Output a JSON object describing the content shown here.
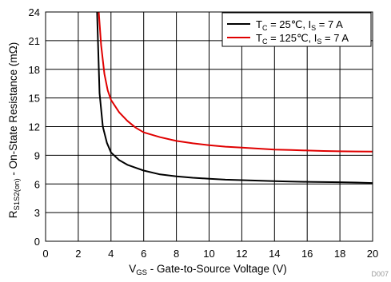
{
  "chart_data": {
    "type": "line",
    "title": "",
    "xlabel": {
      "main": "V",
      "sub": "GS",
      "rest": " - Gate-to-Source Voltage (V)"
    },
    "ylabel": {
      "main": "R",
      "sub": "S1S2(on)",
      "rest": " - On-State Resistance (mΩ)"
    },
    "xlim": [
      0,
      20
    ],
    "ylim": [
      0,
      24
    ],
    "xticks": [
      "0",
      "2",
      "4",
      "6",
      "8",
      "10",
      "12",
      "14",
      "16",
      "18",
      "20"
    ],
    "yticks": [
      "0",
      "3",
      "6",
      "9",
      "12",
      "15",
      "18",
      "21",
      "24"
    ],
    "grid": true,
    "legend_position": "top-right",
    "series": [
      {
        "name": {
          "t": "T",
          "tsub": "C",
          "mid": " = 25℃, I",
          "isub": "S",
          "end": " = 7 A"
        },
        "color": "#000000",
        "x": [
          3.15,
          3.3,
          3.5,
          3.75,
          4.0,
          4.5,
          5.0,
          5.5,
          6.0,
          7.0,
          8.0,
          9.0,
          10.0,
          11.0,
          12.0,
          13.0,
          14.0,
          15.0,
          16.0,
          17.0,
          18.0,
          19.0,
          20.0
        ],
        "y": [
          24.0,
          15.5,
          12.0,
          10.3,
          9.3,
          8.5,
          8.0,
          7.7,
          7.4,
          7.0,
          6.8,
          6.65,
          6.55,
          6.45,
          6.4,
          6.35,
          6.3,
          6.25,
          6.22,
          6.2,
          6.18,
          6.15,
          6.1
        ]
      },
      {
        "name": {
          "t": "T",
          "tsub": "C",
          "mid": " = 125℃, I",
          "isub": "S",
          "end": " = 7 A"
        },
        "color": "#e00000",
        "x": [
          3.25,
          3.4,
          3.6,
          3.8,
          4.0,
          4.5,
          5.0,
          5.5,
          6.0,
          7.0,
          8.0,
          9.0,
          10.0,
          11.0,
          12.0,
          13.0,
          14.0,
          15.0,
          16.0,
          17.0,
          18.0,
          19.0,
          20.0
        ],
        "y": [
          24.0,
          20.5,
          17.5,
          15.8,
          14.8,
          13.5,
          12.6,
          11.9,
          11.4,
          10.9,
          10.5,
          10.25,
          10.05,
          9.9,
          9.8,
          9.7,
          9.6,
          9.55,
          9.5,
          9.45,
          9.42,
          9.4,
          9.38
        ]
      }
    ],
    "figure_code": "D007"
  }
}
